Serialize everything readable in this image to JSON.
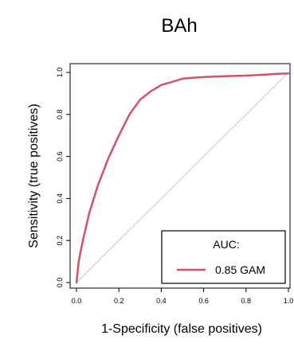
{
  "chart_data": {
    "type": "line",
    "title": "BAh",
    "xlabel": "1-Specificity (false positives)",
    "ylabel": "Sensitivity (true positives)",
    "xlim": [
      0,
      1
    ],
    "ylim": [
      0,
      1
    ],
    "xticks": [
      "0.0",
      "0.2",
      "0.4",
      "0.6",
      "0.8",
      "1.0"
    ],
    "yticks": [
      "0.0",
      "0.2",
      "0.4",
      "0.6",
      "0.8",
      "1.0"
    ],
    "grid": false,
    "legend": {
      "title": "AUC:",
      "placement": "bottom-right",
      "entries": [
        {
          "label": "0.85 GAM",
          "color": "#d6506a"
        }
      ]
    },
    "series": [
      {
        "name": "0.85 GAM",
        "color": "#d6506a",
        "x": [
          0.0,
          0.01,
          0.03,
          0.06,
          0.1,
          0.15,
          0.2,
          0.25,
          0.3,
          0.35,
          0.4,
          0.45,
          0.5,
          0.55,
          0.6,
          0.7,
          0.8,
          0.9,
          0.95,
          1.0
        ],
        "y": [
          0.0,
          0.1,
          0.2,
          0.33,
          0.46,
          0.59,
          0.7,
          0.8,
          0.87,
          0.91,
          0.94,
          0.955,
          0.97,
          0.975,
          0.978,
          0.982,
          0.985,
          0.99,
          0.993,
          0.995
        ]
      },
      {
        "name": "",
        "color": "#c8c8c8",
        "x": [
          0,
          1
        ],
        "y": [
          0,
          1
        ]
      }
    ]
  }
}
